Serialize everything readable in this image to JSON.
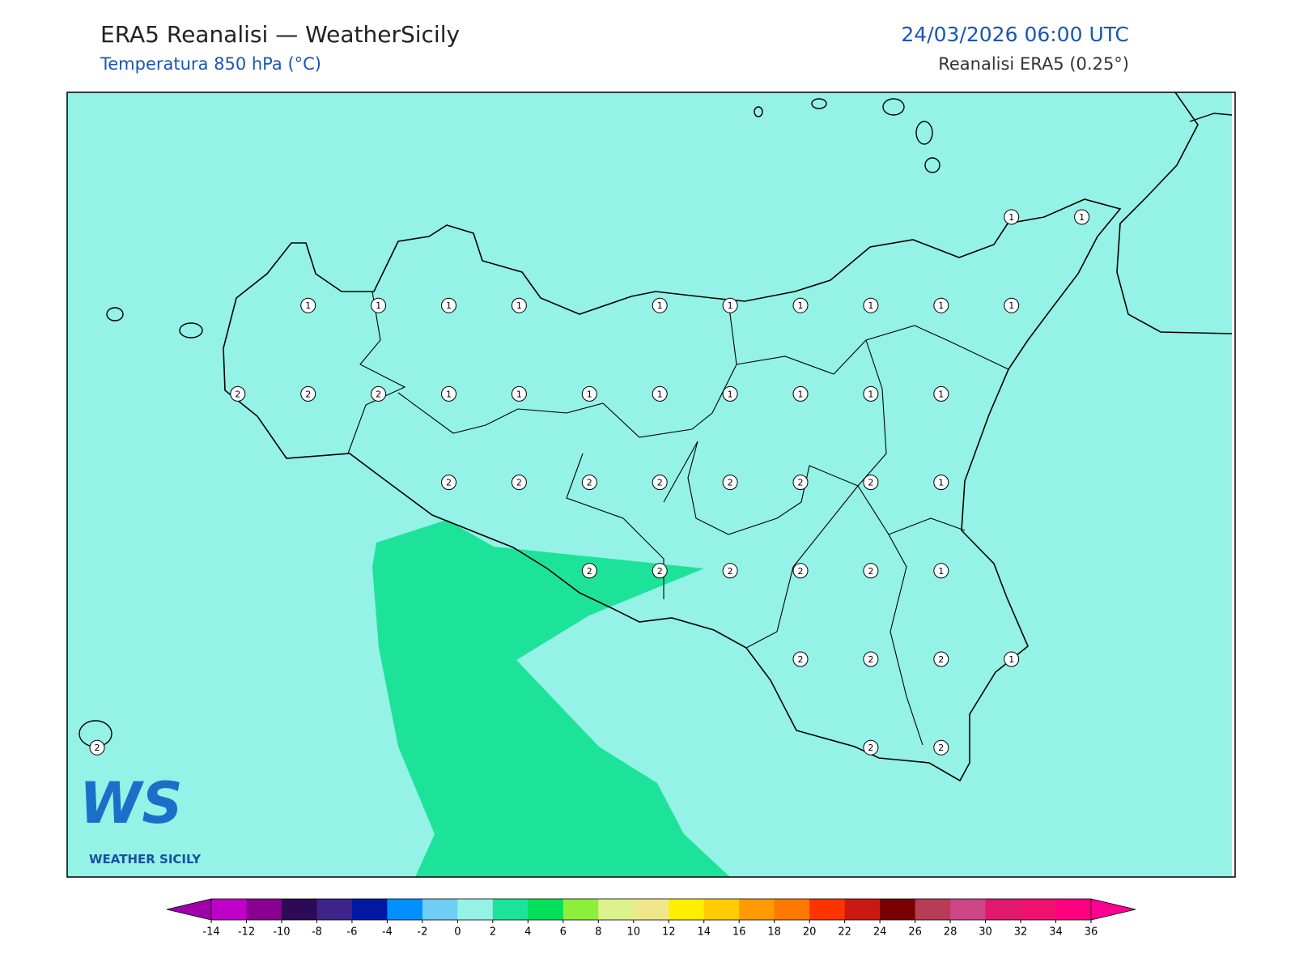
{
  "header": {
    "title": "ERA5 Reanalisi — WeatherSicily",
    "subtitle": "Temperatura 850 hPa (°C)",
    "datetime": "24/03/2026 06:00 UTC",
    "source": "Reanalisi ERA5 (0.25°)"
  },
  "grid_values": [
    [
      null,
      null,
      null,
      null,
      null,
      null,
      null,
      null,
      null,
      null,
      null,
      null,
      null,
      1,
      1
    ],
    [
      null,
      null,
      null,
      1,
      1,
      1,
      1,
      null,
      1,
      1,
      1,
      1,
      1,
      1,
      null
    ],
    [
      null,
      null,
      2,
      2,
      2,
      1,
      1,
      1,
      1,
      1,
      1,
      1,
      1,
      null,
      null
    ],
    [
      null,
      null,
      null,
      null,
      null,
      2,
      2,
      2,
      2,
      2,
      2,
      2,
      1,
      null,
      null
    ],
    [
      null,
      null,
      null,
      null,
      null,
      null,
      null,
      2,
      2,
      2,
      2,
      2,
      1,
      null,
      null
    ],
    [
      null,
      null,
      null,
      null,
      null,
      null,
      null,
      null,
      null,
      null,
      2,
      2,
      2,
      1,
      null
    ],
    [
      2,
      null,
      null,
      null,
      null,
      null,
      null,
      null,
      null,
      null,
      null,
      2,
      2,
      null,
      null
    ]
  ],
  "colorbar": {
    "ticks": [
      -14,
      -12,
      -10,
      -8,
      -6,
      -4,
      -2,
      0,
      2,
      4,
      6,
      8,
      10,
      12,
      14,
      16,
      18,
      20,
      22,
      24,
      26,
      28,
      30,
      32,
      34,
      36
    ],
    "colors": [
      "#c000c8",
      "#8a0090",
      "#2c0a55",
      "#3d2488",
      "#0019a5",
      "#0090ff",
      "#6ecef5",
      "#94f2e6",
      "#1de39a",
      "#00e05a",
      "#8cef3c",
      "#dcf28c",
      "#eee88a",
      "#ffee00",
      "#ffcc00",
      "#ff9a00",
      "#ff7800",
      "#ff3300",
      "#c91a12",
      "#780000",
      "#b83c55",
      "#cc4688",
      "#e0186e",
      "#f01070",
      "#ff0080"
    ],
    "under_color": "#a000a8",
    "over_color": "#ff0090"
  },
  "logo": {
    "mark": "WS",
    "text": "WEATHER SICILY"
  }
}
